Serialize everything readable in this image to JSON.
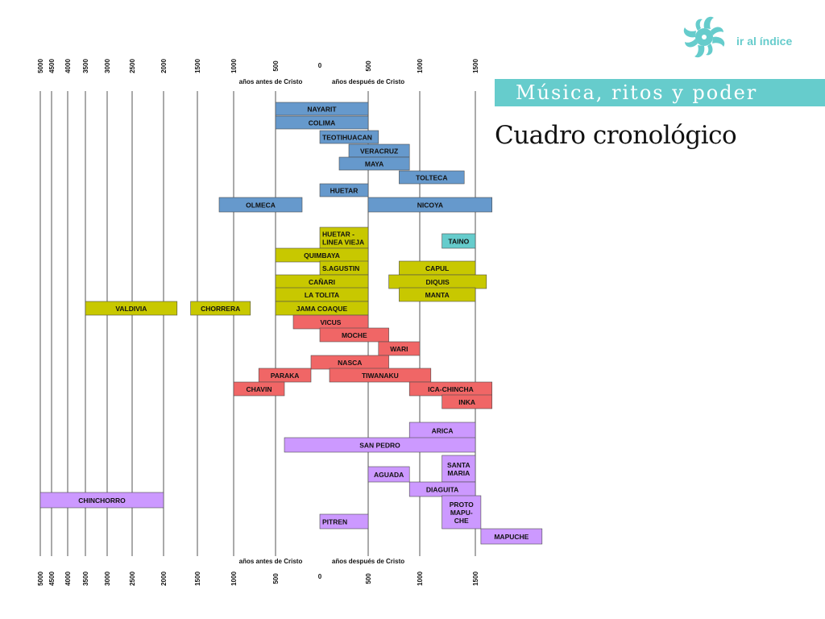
{
  "header": {
    "banner_title": "Música, ritos y poder",
    "subtitle": "Cuadro cronológico",
    "index_link": "ir al índice"
  },
  "colors": {
    "mesoamerica": "#6699cc",
    "intermediate": "#c8c800",
    "caribbean": "#66cccc",
    "andes_central": "#f06666",
    "andes_south": "#cc99ff",
    "accent": "#66cccc"
  },
  "chart_data": {
    "type": "timeline",
    "x_unit": "year (negative = BC, positive = AD)",
    "bc_label": "años antes de Cristo",
    "ad_label": "años después de Cristo",
    "axis_ticks": [
      {
        "value": -5000,
        "label": "5000"
      },
      {
        "value": -4500,
        "label": "4500"
      },
      {
        "value": -4000,
        "label": "4000"
      },
      {
        "value": -3500,
        "label": "3500"
      },
      {
        "value": -3000,
        "label": "3000"
      },
      {
        "value": -2500,
        "label": "2500"
      },
      {
        "value": -2000,
        "label": "2000"
      },
      {
        "value": -1500,
        "label": "1500"
      },
      {
        "value": -1000,
        "label": "1000"
      },
      {
        "value": -500,
        "label": "500"
      },
      {
        "value": 0,
        "label": "0"
      },
      {
        "value": 500,
        "label": "500"
      },
      {
        "value": 1000,
        "label": "1000"
      },
      {
        "value": 1500,
        "label": "1500"
      }
    ],
    "periods": [
      {
        "label": "NAYARIT",
        "start": -500,
        "end": 500,
        "group": "mesoamerica"
      },
      {
        "label": "COLIMA",
        "start": -500,
        "end": 500,
        "group": "mesoamerica"
      },
      {
        "label": "TEOTIHUACAN",
        "start": 0,
        "end": 600,
        "group": "mesoamerica"
      },
      {
        "label": "VERACRUZ",
        "start": 300,
        "end": 900,
        "group": "mesoamerica"
      },
      {
        "label": "MAYA",
        "start": 200,
        "end": 900,
        "group": "mesoamerica"
      },
      {
        "label": "TOLTECA",
        "start": 800,
        "end": 1400,
        "group": "mesoamerica"
      },
      {
        "label": "HUETAR",
        "start": 0,
        "end": 500,
        "group": "mesoamerica"
      },
      {
        "label": "OLMECA",
        "start": -1200,
        "end": -200,
        "group": "mesoamerica"
      },
      {
        "label": "NICOYA",
        "start": 500,
        "end": 1650,
        "group": "mesoamerica"
      },
      {
        "label": "HUETAR - LINEA VIEJA",
        "start": 0,
        "end": 500,
        "group": "intermediate"
      },
      {
        "label": "TAINO",
        "start": 1200,
        "end": 1500,
        "group": "caribbean"
      },
      {
        "label": "QUIMBAYA",
        "start": -500,
        "end": 500,
        "group": "intermediate"
      },
      {
        "label": "S.AGUSTIN",
        "start": 0,
        "end": 500,
        "group": "intermediate"
      },
      {
        "label": "CAPUL",
        "start": 800,
        "end": 1500,
        "group": "intermediate"
      },
      {
        "label": "CAÑARI",
        "start": -500,
        "end": 500,
        "group": "intermediate"
      },
      {
        "label": "DIQUIS",
        "start": 700,
        "end": 1600,
        "group": "intermediate"
      },
      {
        "label": "LA TOLITA",
        "start": -500,
        "end": 500,
        "group": "intermediate"
      },
      {
        "label": "MANTA",
        "start": 800,
        "end": 1500,
        "group": "intermediate"
      },
      {
        "label": "VALDIVIA",
        "start": -3500,
        "end": -1800,
        "group": "intermediate"
      },
      {
        "label": "CHORRERA",
        "start": -1600,
        "end": -800,
        "group": "intermediate"
      },
      {
        "label": "JAMA COAQUE",
        "start": -500,
        "end": 500,
        "group": "intermediate"
      },
      {
        "label": "VICUS",
        "start": -300,
        "end": 500,
        "group": "andes_central"
      },
      {
        "label": "MOCHE",
        "start": 0,
        "end": 700,
        "group": "andes_central"
      },
      {
        "label": "WARI",
        "start": 600,
        "end": 1000,
        "group": "andes_central"
      },
      {
        "label": "NASCA",
        "start": -100,
        "end": 700,
        "group": "andes_central"
      },
      {
        "label": "PARAKA",
        "start": -700,
        "end": -100,
        "group": "andes_central"
      },
      {
        "label": "TIWANAKU",
        "start": 100,
        "end": 1100,
        "group": "andes_central"
      },
      {
        "label": "CHAVIN",
        "start": -1000,
        "end": -400,
        "group": "andes_central"
      },
      {
        "label": "ICA-CHINCHA",
        "start": 900,
        "end": 1650,
        "group": "andes_central"
      },
      {
        "label": "INKA",
        "start": 1200,
        "end": 1650,
        "group": "andes_central"
      },
      {
        "label": "ARICA",
        "start": 900,
        "end": 1500,
        "group": "andes_south"
      },
      {
        "label": "SAN PEDRO",
        "start": -400,
        "end": 1500,
        "group": "andes_south"
      },
      {
        "label": "SANTA MARIA",
        "start": 1200,
        "end": 1500,
        "group": "andes_south"
      },
      {
        "label": "AGUADA",
        "start": 500,
        "end": 900,
        "group": "andes_south"
      },
      {
        "label": "DIAGUITA",
        "start": 900,
        "end": 1500,
        "group": "andes_south"
      },
      {
        "label": "CHINCHORRO",
        "start": -5000,
        "end": -2000,
        "group": "andes_south"
      },
      {
        "label": "PROTO MAPU-CHE",
        "start": 1200,
        "end": 1550,
        "group": "andes_south"
      },
      {
        "label": "PITREN",
        "start": 0,
        "end": 500,
        "group": "andes_south"
      },
      {
        "label": "MAPUCHE",
        "start": 1550,
        "end": 2100,
        "group": "andes_south"
      }
    ]
  }
}
